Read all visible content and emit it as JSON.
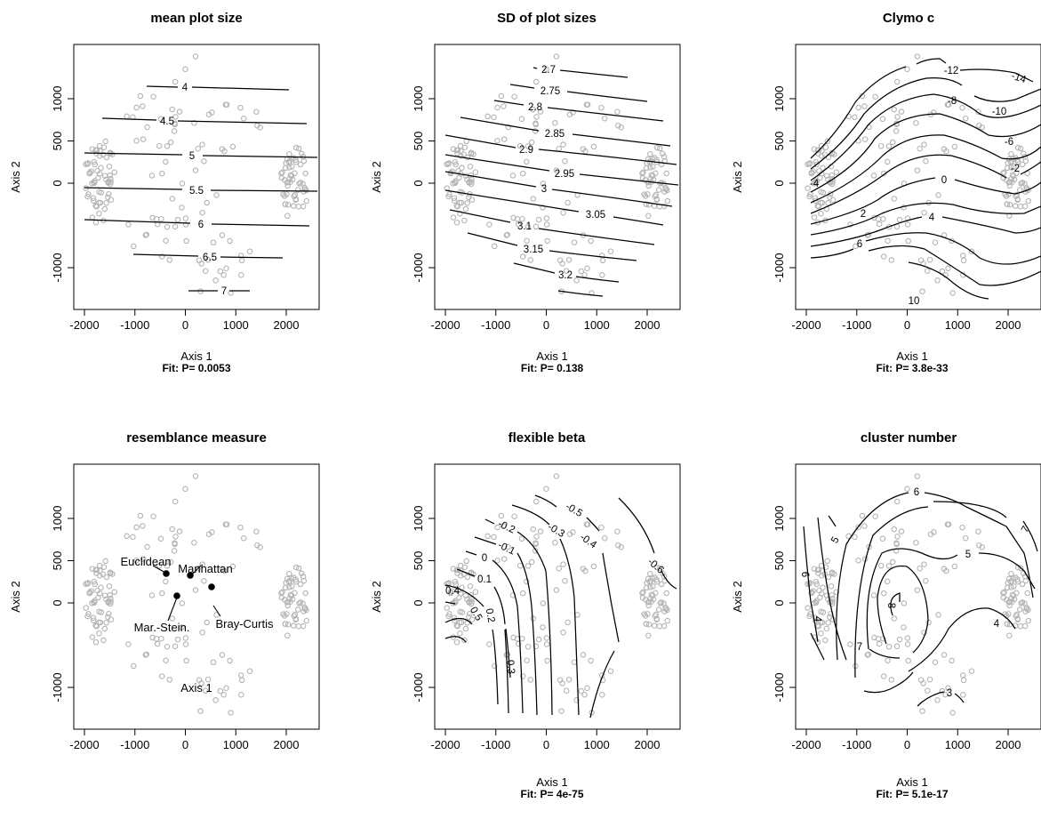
{
  "chart_data": [
    {
      "type": "scatter",
      "title": "mean plot size",
      "xlabel": "Axis 1",
      "ylabel": "Axis 2",
      "fit": "Fit: P= 0.0053",
      "xlim": [
        -2200,
        2600
      ],
      "ylim": [
        -1450,
        1560
      ],
      "xticks": [
        "-2000",
        "-1000",
        "0",
        "1000",
        "2000"
      ],
      "yticks": [
        "-1000",
        "0",
        "500",
        "1000"
      ],
      "contour_levels": [
        "4",
        "4.5",
        "5",
        "5.5",
        "6",
        "6.5",
        "7"
      ]
    },
    {
      "type": "scatter",
      "title": "SD of plot sizes",
      "xlabel": "Axis 1",
      "ylabel": "Axis 2",
      "fit": "Fit: P= 0.138",
      "xlim": [
        -2200,
        2600
      ],
      "ylim": [
        -1450,
        1560
      ],
      "xticks": [
        "-2000",
        "-1000",
        "0",
        "1000",
        "2000"
      ],
      "yticks": [
        "-1000",
        "0",
        "500",
        "1000"
      ],
      "contour_levels": [
        "2.7",
        "2.75",
        "2.8",
        "2.85",
        "2.9",
        "2.95",
        "3",
        "3.05",
        "3.1",
        "3.15",
        "3.2"
      ]
    },
    {
      "type": "scatter",
      "title": "Clymo c",
      "xlabel": "Axis 1",
      "ylabel": "Axis 2",
      "fit": "Fit: P= 3.8e-33",
      "xlim": [
        -2200,
        2600
      ],
      "ylim": [
        -1450,
        1560
      ],
      "xticks": [
        "-2000",
        "-1000",
        "0",
        "1000",
        "2000"
      ],
      "yticks": [
        "-1000",
        "0",
        "500",
        "1000"
      ],
      "contour_levels": [
        "-14",
        "-12",
        "-10",
        "-8",
        "-6",
        "-4",
        "-2",
        "0",
        "2",
        "4",
        "6",
        "8",
        "10"
      ]
    },
    {
      "type": "scatter",
      "title": "resemblance measure",
      "xlabel": "Axis 1",
      "ylabel": "Axis 2",
      "fit": "",
      "xlim": [
        -2200,
        2600
      ],
      "ylim": [
        -1450,
        1560
      ],
      "xticks": [
        "-2000",
        "-1000",
        "0",
        "1000",
        "2000"
      ],
      "yticks": [
        "-1000",
        "0",
        "500",
        "1000"
      ],
      "centroids": [
        {
          "label": "Euclidean",
          "x": -380,
          "y": 150
        },
        {
          "label": "Manhattan",
          "x": 80,
          "y": 120
        },
        {
          "label": "Mar.-Stein.",
          "x": -160,
          "y": -140
        },
        {
          "label": "Bray-Curtis",
          "x": 480,
          "y": -70
        }
      ]
    },
    {
      "type": "scatter",
      "title": "flexible beta",
      "xlabel": "Axis 1",
      "ylabel": "Axis 2",
      "fit": "Fit: P= 4e-75",
      "xlim": [
        -2200,
        2600
      ],
      "ylim": [
        -1450,
        1560
      ],
      "xticks": [
        "-2000",
        "-1000",
        "0",
        "1000",
        "2000"
      ],
      "yticks": [
        "-1000",
        "0",
        "500",
        "1000"
      ],
      "contour_levels": [
        "-0.6",
        "-0.5",
        "-0.4",
        "-0.3",
        "-0.2",
        "-0.1",
        "0",
        "0.1",
        "0.2",
        "0.3",
        "0.4",
        "0.5"
      ]
    },
    {
      "type": "scatter",
      "title": "cluster number",
      "xlabel": "Axis 1",
      "ylabel": "Axis 2",
      "fit": "Fit: P= 5.1e-17",
      "xlim": [
        -2200,
        2600
      ],
      "ylim": [
        -1450,
        1560
      ],
      "xticks": [
        "-2000",
        "-1000",
        "0",
        "1000",
        "2000"
      ],
      "yticks": [
        "-1000",
        "0",
        "500",
        "1000"
      ],
      "contour_levels": [
        "3",
        "4",
        "5",
        "6",
        "7",
        "8"
      ]
    }
  ]
}
